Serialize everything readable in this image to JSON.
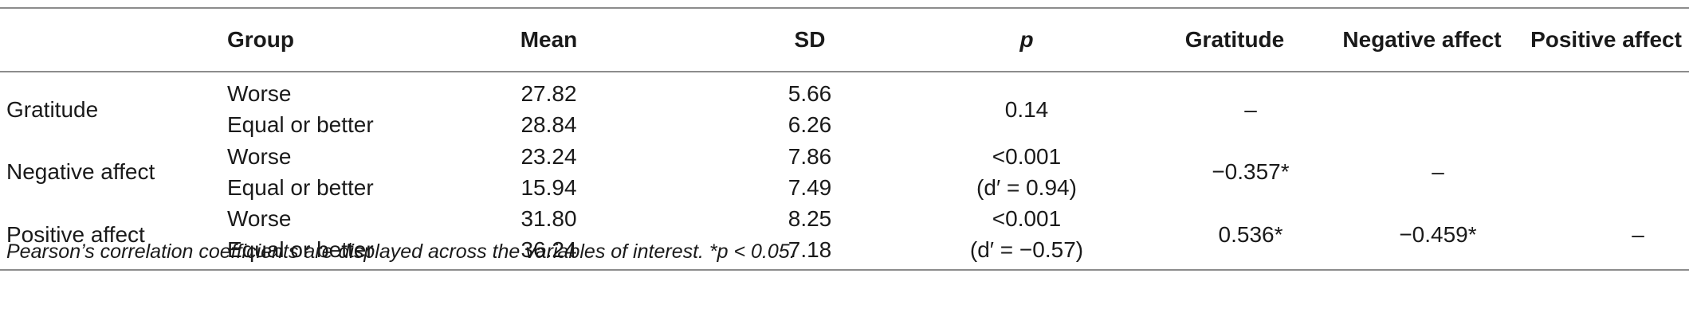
{
  "table": {
    "headers": [
      "",
      "Group",
      "Mean",
      "SD",
      "p",
      "Gratitude",
      "Negative affect",
      "Positive affect"
    ],
    "rows": [
      {
        "variable": "Gratitude",
        "groups": [
          "Worse",
          "Equal or better"
        ],
        "means": [
          "27.82",
          "28.84"
        ],
        "sds": [
          "5.66",
          "6.26"
        ],
        "p": [
          "0.14",
          ""
        ],
        "gratitude": "–",
        "negative_affect": "",
        "positive_affect": ""
      },
      {
        "variable": "Negative affect",
        "groups": [
          "Worse",
          "Equal or better"
        ],
        "means": [
          "23.24",
          "15.94"
        ],
        "sds": [
          "7.86",
          "7.49"
        ],
        "p": [
          "<0.001",
          "(d′ = 0.94)"
        ],
        "gratitude": "−0.357*",
        "negative_affect": "–",
        "positive_affect": ""
      },
      {
        "variable": "Positive affect",
        "groups": [
          "Worse",
          "Equal or better"
        ],
        "means": [
          "31.80",
          "36.24"
        ],
        "sds": [
          "8.25",
          "7.18"
        ],
        "p": [
          "<0.001",
          "(d′ = −0.57)"
        ],
        "gratitude": "0.536*",
        "negative_affect": "−0.459*",
        "positive_affect": "–"
      }
    ],
    "footnote": "Pearson’s correlation coefficients are displayed across the variables of interest. *p < 0.05."
  }
}
